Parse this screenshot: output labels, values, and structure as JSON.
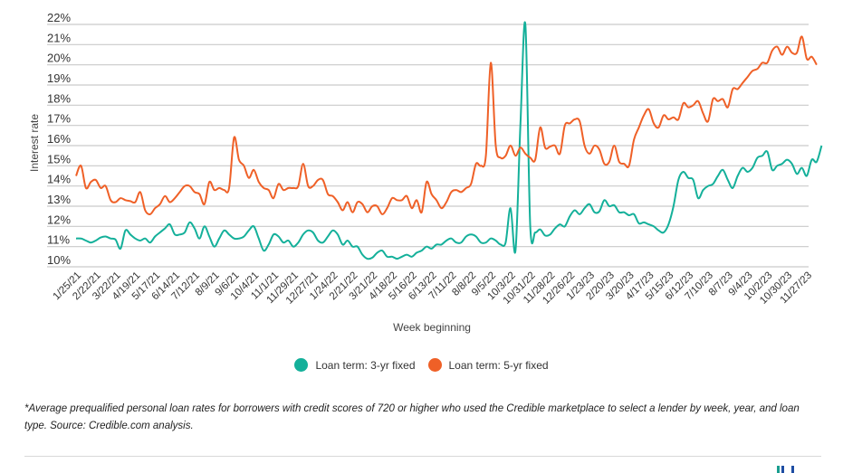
{
  "chart_data": {
    "type": "line",
    "title": "",
    "xlabel": "Week beginning",
    "ylabel": "Interest rate",
    "ylim": [
      10,
      22
    ],
    "yticks": [
      "10%",
      "11%",
      "12%",
      "13%",
      "14%",
      "15%",
      "16%",
      "17%",
      "18%",
      "19%",
      "20%",
      "21%",
      "22%"
    ],
    "ytick_values": [
      10,
      11,
      12,
      13,
      14,
      15,
      16,
      17,
      18,
      19,
      20,
      21,
      22
    ],
    "xtick_labels": [
      "1/25/21",
      "2/22/21",
      "3/22/21",
      "4/19/21",
      "5/17/21",
      "6/14/21",
      "7/12/21",
      "8/9/21",
      "9/6/21",
      "10/4/21",
      "11/1/21",
      "11/29/21",
      "12/27/21",
      "1/24/22",
      "2/21/22",
      "3/21/22",
      "4/18/22",
      "5/16/22",
      "6/13/22",
      "7/11/22",
      "8/8/22",
      "9/5/22",
      "10/3/22",
      "10/31/22",
      "11/28/22",
      "12/26/22",
      "1/23/23",
      "2/20/23",
      "3/20/23",
      "4/17/23",
      "5/15/23",
      "6/12/23",
      "7/10/23",
      "8/7/23",
      "9/4/23",
      "10/2/23",
      "10/30/23",
      "11/27/23"
    ],
    "xtick_every_weeks": 4,
    "num_weeks": 149,
    "grid": true,
    "legend_position": "bottom-center",
    "series": [
      {
        "name": "Loan term: 3-yr fixed",
        "color": "#14b09a",
        "values": [
          11.4,
          11.4,
          11.3,
          11.2,
          11.3,
          11.45,
          11.5,
          11.4,
          11.35,
          10.9,
          11.8,
          11.6,
          11.4,
          11.3,
          11.4,
          11.2,
          11.5,
          11.7,
          11.9,
          12.1,
          11.6,
          11.6,
          11.7,
          12.2,
          11.9,
          11.4,
          12.0,
          11.5,
          11.0,
          11.4,
          11.8,
          11.6,
          11.4,
          11.4,
          11.5,
          11.8,
          12.0,
          11.4,
          10.8,
          11.1,
          11.6,
          11.5,
          11.2,
          11.3,
          11.0,
          11.2,
          11.6,
          11.8,
          11.7,
          11.3,
          11.2,
          11.5,
          11.8,
          11.6,
          11.1,
          11.3,
          11.0,
          11.0,
          10.6,
          10.4,
          10.45,
          10.7,
          10.8,
          10.5,
          10.5,
          10.4,
          10.5,
          10.6,
          10.5,
          10.7,
          10.8,
          11.0,
          10.9,
          11.1,
          11.1,
          11.3,
          11.4,
          11.2,
          11.2,
          11.5,
          11.6,
          11.5,
          11.2,
          11.2,
          11.4,
          11.3,
          11.1,
          11.2,
          12.9,
          10.8,
          17.0,
          22.0,
          12.0,
          11.7,
          11.85,
          11.55,
          11.6,
          11.9,
          12.1,
          12.0,
          12.5,
          12.8,
          12.6,
          12.9,
          13.1,
          12.7,
          12.75,
          13.3,
          13.0,
          13.05,
          12.7,
          12.7,
          12.55,
          12.6,
          12.15,
          12.2,
          12.1,
          12.0,
          11.8,
          11.7,
          12.1,
          13.0,
          14.3,
          14.7,
          14.4,
          14.3,
          13.4,
          13.8,
          14.0,
          14.1,
          14.5,
          14.8,
          14.3,
          13.9,
          14.5,
          14.9,
          14.7,
          14.9,
          15.4,
          15.5,
          15.7,
          14.8,
          15.0,
          15.1,
          15.3,
          15.1,
          14.6,
          14.9,
          14.5,
          15.3,
          15.2,
          16.0
        ]
      },
      {
        "name": "Loan term: 5-yr fixed",
        "color": "#ef6027",
        "values": [
          14.5,
          15.0,
          13.9,
          14.2,
          14.3,
          13.9,
          14.0,
          13.3,
          13.2,
          13.4,
          13.3,
          13.25,
          13.2,
          13.7,
          12.8,
          12.6,
          12.9,
          13.1,
          13.5,
          13.2,
          13.4,
          13.7,
          14.0,
          14.0,
          13.7,
          13.6,
          13.1,
          14.2,
          13.8,
          13.9,
          13.8,
          13.9,
          16.4,
          15.3,
          15.0,
          14.4,
          14.8,
          14.2,
          13.9,
          13.8,
          13.4,
          14.1,
          13.8,
          13.9,
          13.9,
          14.0,
          15.1,
          14.0,
          14.0,
          14.3,
          14.3,
          13.6,
          13.5,
          13.2,
          12.8,
          13.2,
          12.7,
          13.2,
          13.1,
          12.7,
          13.0,
          13.0,
          12.6,
          12.9,
          13.4,
          13.3,
          13.3,
          13.5,
          12.9,
          13.3,
          12.7,
          14.2,
          13.6,
          13.3,
          12.9,
          13.2,
          13.7,
          13.8,
          13.7,
          13.9,
          14.1,
          15.1,
          15.0,
          15.5,
          20.1,
          16.0,
          15.4,
          15.5,
          16.0,
          15.5,
          15.9,
          15.6,
          15.4,
          15.3,
          16.9,
          15.9,
          15.95,
          16.0,
          15.6,
          17.0,
          17.1,
          17.3,
          17.2,
          16.0,
          15.6,
          16.0,
          15.8,
          15.1,
          15.2,
          16.0,
          15.2,
          15.1,
          15.0,
          16.3,
          16.9,
          17.5,
          17.8,
          17.1,
          16.9,
          17.5,
          17.3,
          17.4,
          17.3,
          18.1,
          17.9,
          18.0,
          18.2,
          17.6,
          17.2,
          18.3,
          18.2,
          18.3,
          17.9,
          18.8,
          18.8,
          19.1,
          19.4,
          19.7,
          19.8,
          20.1,
          20.1,
          20.7,
          20.9,
          20.5,
          20.9,
          20.6,
          20.6,
          21.4,
          20.3,
          20.4,
          20.0
        ]
      }
    ],
    "footnote": "*Average prequalified personal loan rates for borrowers with credit scores of 720 or higher who used the Credible marketplace to select a lender by week, year, and loan type. Source: Credible.com analysis."
  },
  "legend": {
    "items": [
      {
        "label": "Loan term: 3-yr fixed",
        "color": "#14b09a"
      },
      {
        "label": "Loan term: 5-yr fixed",
        "color": "#ef6027"
      }
    ]
  },
  "colors": {
    "grid": "#c9c9c9",
    "logo": [
      "#1a9e8f",
      "#1f4ea3",
      "#1f4ea3"
    ]
  }
}
